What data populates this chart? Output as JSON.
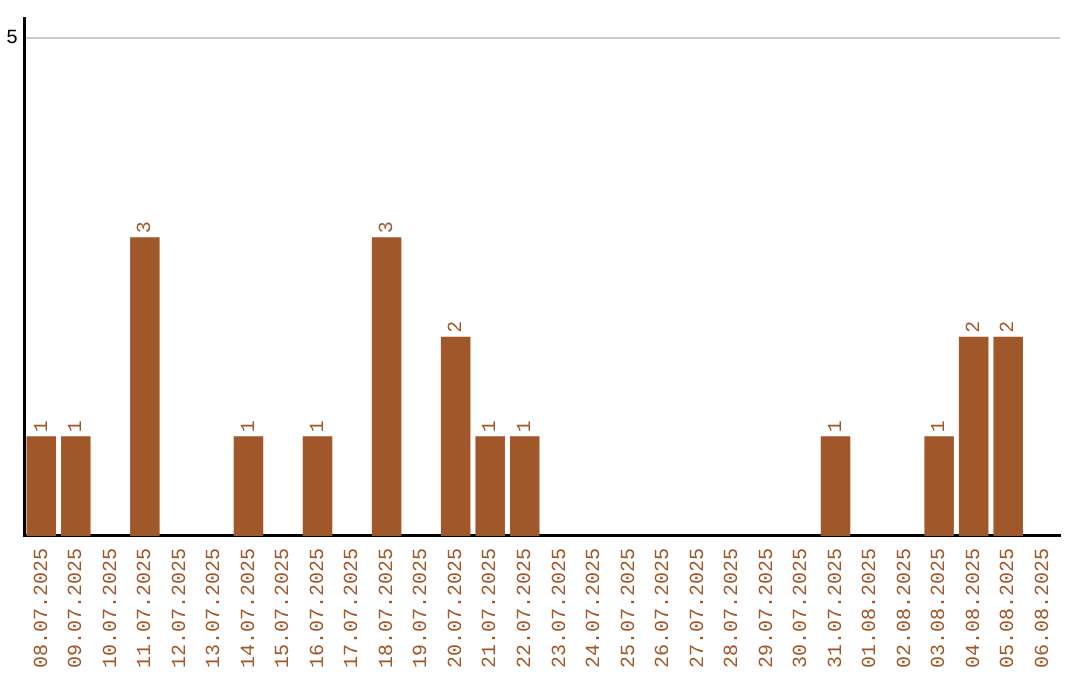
{
  "chart_data": {
    "type": "bar",
    "categories": [
      "08.07.2025",
      "09.07.2025",
      "10.07.2025",
      "11.07.2025",
      "12.07.2025",
      "13.07.2025",
      "14.07.2025",
      "15.07.2025",
      "16.07.2025",
      "17.07.2025",
      "18.07.2025",
      "19.07.2025",
      "20.07.2025",
      "21.07.2025",
      "22.07.2025",
      "23.07.2025",
      "24.07.2025",
      "25.07.2025",
      "26.07.2025",
      "27.07.2025",
      "28.07.2025",
      "29.07.2025",
      "30.07.2025",
      "31.07.2025",
      "01.08.2025",
      "02.08.2025",
      "03.08.2025",
      "04.08.2025",
      "05.08.2025",
      "06.08.2025"
    ],
    "values": [
      1,
      1,
      0,
      3,
      0,
      0,
      1,
      0,
      1,
      0,
      3,
      0,
      2,
      1,
      1,
      0,
      0,
      0,
      0,
      0,
      0,
      0,
      0,
      1,
      0,
      0,
      1,
      2,
      2,
      0
    ],
    "value_labels": [
      "1",
      "1",
      null,
      "3",
      null,
      null,
      "1",
      null,
      "1",
      null,
      "3",
      null,
      "2",
      "1",
      "1",
      null,
      null,
      null,
      null,
      null,
      null,
      null,
      null,
      "1",
      null,
      null,
      "1",
      "2",
      "2",
      null
    ],
    "color": "#a0572a",
    "ylim": [
      0,
      5.2
    ],
    "yticks": [
      5
    ],
    "grid": "y",
    "legend": false
  }
}
